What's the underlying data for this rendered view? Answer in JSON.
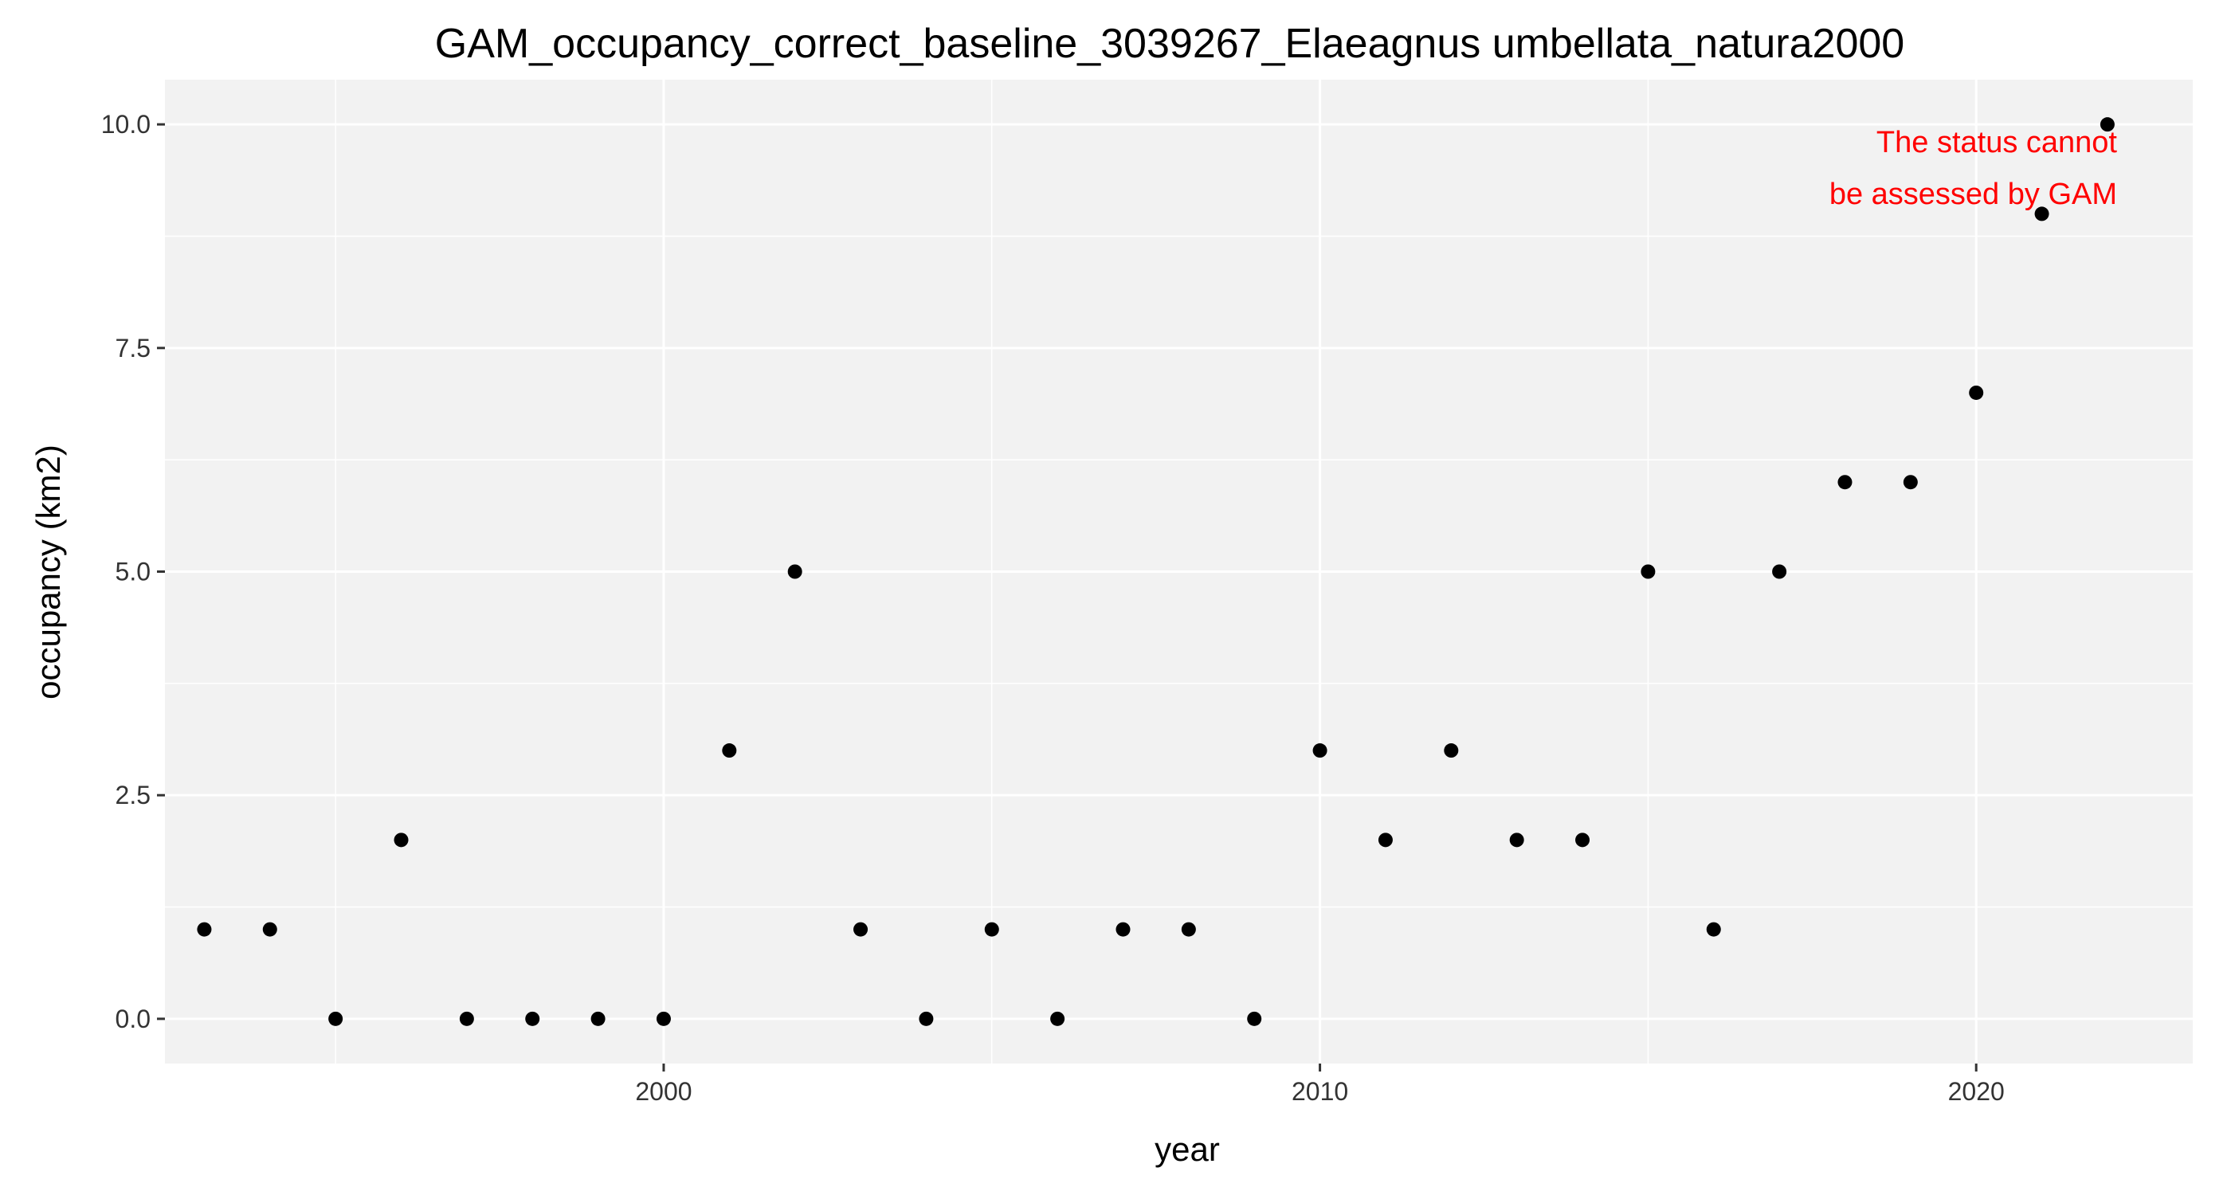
{
  "chart_data": {
    "type": "scatter",
    "title": "GAM_occupancy_correct_baseline_3039267_Elaeagnus umbellata_natura2000",
    "xlabel": "year",
    "ylabel": "occupancy (km2)",
    "xlim": [
      1992.4,
      2023.3
    ],
    "ylim": [
      -0.5,
      10.5
    ],
    "x_ticks": [
      2000,
      2010,
      2020
    ],
    "x_tick_labels": [
      "2000",
      "2010",
      "2020"
    ],
    "y_ticks": [
      0,
      2.5,
      5,
      7.5,
      10
    ],
    "y_tick_labels": [
      "0.0",
      "2.5",
      "5.0",
      "7.5",
      "10.0"
    ],
    "grid": true,
    "background": "#f2f2f2",
    "grid_color": "#ffffff",
    "point_color": "#000000",
    "series": [
      {
        "x": [
          1993,
          1994,
          1995,
          1996,
          1997,
          1998,
          1999,
          2000,
          2001,
          2002,
          2003,
          2004,
          2005,
          2006,
          2007,
          2008,
          2009,
          2010,
          2011,
          2012,
          2013,
          2014,
          2015,
          2016,
          2017,
          2018,
          2019,
          2020,
          2021,
          2022
        ],
        "y": [
          1,
          1,
          0,
          2,
          0,
          0,
          0,
          0,
          3,
          5,
          1,
          0,
          1,
          0,
          1,
          1,
          0,
          3,
          2,
          3,
          2,
          2,
          5,
          1,
          5,
          6,
          6,
          7,
          9,
          10
        ]
      }
    ],
    "annotation": {
      "lines": [
        "The status cannot",
        "be assessed by GAM"
      ],
      "color": "#ff0000",
      "placement": "top-right"
    }
  }
}
